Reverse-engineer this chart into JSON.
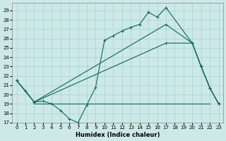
{
  "xlabel": "Humidex (Indice chaleur)",
  "xlim": [
    -0.5,
    23.5
  ],
  "ylim": [
    17,
    29.8
  ],
  "yticks": [
    17,
    18,
    19,
    20,
    21,
    22,
    23,
    24,
    25,
    26,
    27,
    28,
    29
  ],
  "xticks": [
    0,
    1,
    2,
    3,
    4,
    5,
    6,
    7,
    8,
    9,
    10,
    11,
    12,
    13,
    14,
    15,
    16,
    17,
    18,
    19,
    20,
    21,
    22,
    23
  ],
  "bg_color": "#cde9e7",
  "grid_color": "#b0d8d5",
  "line_color": "#1a6b5a",
  "zigzag_x": [
    0,
    1,
    2,
    3,
    4,
    5,
    6,
    7,
    8,
    9,
    10,
    11,
    12,
    13,
    14,
    15,
    16,
    17,
    20,
    21,
    22,
    23
  ],
  "zigzag_y": [
    21.5,
    20.4,
    19.2,
    19.3,
    19.0,
    18.3,
    17.4,
    17.0,
    18.9,
    20.8,
    25.8,
    26.3,
    26.8,
    27.2,
    27.5,
    28.8,
    28.3,
    29.3,
    25.5,
    23.0,
    20.7,
    19.0
  ],
  "upper_x": [
    0,
    2,
    17,
    20,
    21,
    22,
    23
  ],
  "upper_y": [
    21.5,
    19.2,
    27.5,
    25.5,
    23.0,
    20.7,
    19.0
  ],
  "lower_x": [
    0,
    2,
    17,
    20,
    21,
    22,
    23
  ],
  "lower_y": [
    21.5,
    19.2,
    25.5,
    25.5,
    23.0,
    20.7,
    19.0
  ],
  "hline_x": [
    2,
    17
  ],
  "hline_y": [
    19.0,
    19.0
  ],
  "hline2_x": [
    17,
    22
  ],
  "hline2_y": [
    19.0,
    19.0
  ]
}
